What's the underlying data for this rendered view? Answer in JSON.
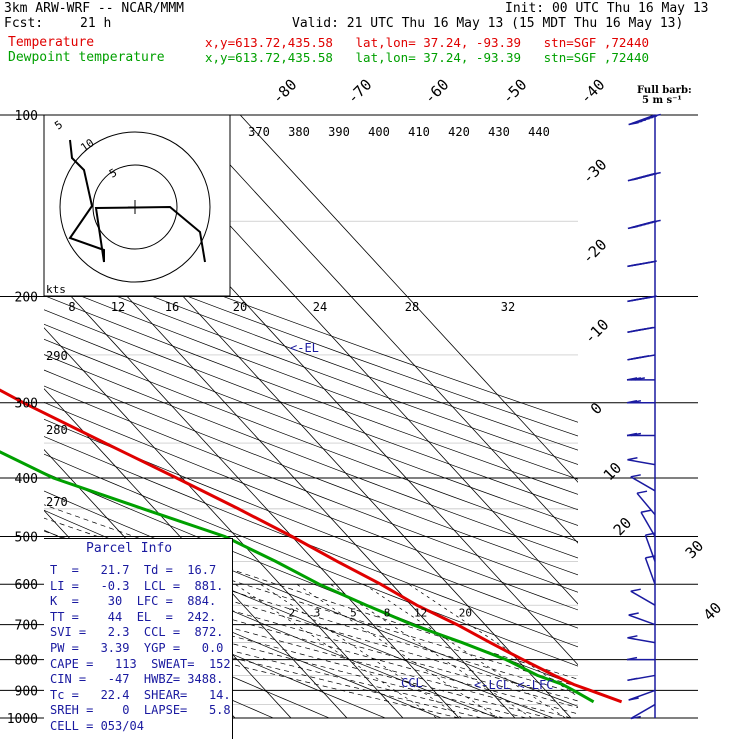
{
  "header": {
    "model": "3km ARW-WRF -- NCAR/MMM",
    "init": "Init: 00 UTC Thu 16 May 13",
    "fcst_label": "Fcst:",
    "fcst_value": "21 h",
    "valid": "Valid: 21 UTC Thu 16 May 13 (15 MDT Thu 16 May 13)",
    "temp_label": "Temperature",
    "dew_label": "Dewpoint temperature",
    "temp_info": "x,y=613.72,435.58   lat,lon= 37.24, -93.39   stn=SGF ,72440",
    "dew_info": "x,y=613.72,435.58   lat,lon= 37.24, -93.39   stn=SGF ,72440"
  },
  "barb_legend": {
    "line1": "Full barb:",
    "line2": "5 m s⁻¹"
  },
  "parcel_info": {
    "title": "Parcel Info",
    "rows": [
      "T  =   21.7  Td =  16.7",
      "LI =   -0.3  LCL =  881.",
      "K  =    30  LFC =  884.",
      "TT =    44  EL  =  242.",
      "SVI =   2.3  CCL =  872.",
      "PW =   3.39  YGP =   0.0",
      "CAPE =   113  SWEAT=  152",
      "CIN =   -47  HWBZ= 3488.",
      "Tc =   22.4  SHEAR=   14.",
      "SREH =    0  LAPSE=   5.8",
      "CELL = 053/04"
    ]
  },
  "chart_data": {
    "type": "line",
    "title": "Skew-T log-P sounding",
    "ylabel": "Pressure (hPa)",
    "xlabel": "Temperature (°C)",
    "pressure_ticks": [
      100,
      200,
      300,
      400,
      500,
      600,
      700,
      800,
      900,
      1000
    ],
    "isotherm_labels": [
      "-80",
      "-70",
      "-60",
      "-50",
      "-40",
      "-30",
      "-20",
      "-10",
      "0",
      "10",
      "20",
      "30",
      "40"
    ],
    "theta_labels": [
      "370",
      "380",
      "390",
      "400",
      "410",
      "420",
      "430",
      "440"
    ],
    "theta_left_labels": [
      "290",
      "280",
      "270"
    ],
    "mixing_ratio_labels": [
      "2",
      "3",
      "5",
      "8",
      "12",
      "20"
    ],
    "hodo_speed_labels": [
      "8",
      "12",
      "16",
      "20",
      "24",
      "28",
      "32"
    ],
    "hodo_ring_labels": [
      "5",
      "10",
      "5"
    ],
    "hodo_unit": "kts",
    "annotations": {
      "el": "<-EL",
      "lcl_lfc": "<-LCL <-LFC",
      "ccl": "CCL"
    },
    "series": [
      {
        "name": "Temperature",
        "color": "#e00000",
        "points": [
          [
            100,
            -58
          ],
          [
            130,
            -55
          ],
          [
            150,
            -60
          ],
          [
            170,
            -63
          ],
          [
            200,
            -57
          ],
          [
            215,
            -51
          ],
          [
            250,
            -44
          ],
          [
            300,
            -36
          ],
          [
            350,
            -28
          ],
          [
            400,
            -21
          ],
          [
            450,
            -15
          ],
          [
            500,
            -10
          ],
          [
            550,
            -6
          ],
          [
            600,
            -2
          ],
          [
            650,
            1
          ],
          [
            700,
            5
          ],
          [
            750,
            8
          ],
          [
            800,
            11
          ],
          [
            850,
            14
          ],
          [
            880,
            16
          ],
          [
            900,
            18
          ],
          [
            940,
            21.7
          ]
        ]
      },
      {
        "name": "Dewpoint temperature",
        "color": "#00a000",
        "points": [
          [
            100,
            -85
          ],
          [
            130,
            -84
          ],
          [
            150,
            -82
          ],
          [
            170,
            -86
          ],
          [
            200,
            -85
          ],
          [
            215,
            -82
          ],
          [
            250,
            -72
          ],
          [
            300,
            -58
          ],
          [
            350,
            -50
          ],
          [
            400,
            -43
          ],
          [
            450,
            -32
          ],
          [
            500,
            -22
          ],
          [
            550,
            -17
          ],
          [
            600,
            -13
          ],
          [
            650,
            -8
          ],
          [
            700,
            -3
          ],
          [
            750,
            3
          ],
          [
            800,
            8
          ],
          [
            850,
            11
          ],
          [
            880,
            14
          ],
          [
            900,
            15
          ],
          [
            940,
            16.7
          ]
        ]
      }
    ],
    "wind_barbs": [
      {
        "p": 100,
        "spd": 35,
        "dir": 250
      },
      {
        "p": 125,
        "spd": 35,
        "dir": 255
      },
      {
        "p": 150,
        "spd": 35,
        "dir": 255
      },
      {
        "p": 175,
        "spd": 30,
        "dir": 260
      },
      {
        "p": 200,
        "spd": 30,
        "dir": 260
      },
      {
        "p": 225,
        "spd": 25,
        "dir": 260
      },
      {
        "p": 250,
        "spd": 20,
        "dir": 260
      },
      {
        "p": 275,
        "spd": 15,
        "dir": 270
      },
      {
        "p": 300,
        "spd": 10,
        "dir": 270
      },
      {
        "p": 340,
        "spd": 10,
        "dir": 270
      },
      {
        "p": 380,
        "spd": 5,
        "dir": 280
      },
      {
        "p": 420,
        "spd": 5,
        "dir": 300
      },
      {
        "p": 460,
        "spd": 5,
        "dir": 320
      },
      {
        "p": 500,
        "spd": 5,
        "dir": 330
      },
      {
        "p": 550,
        "spd": 5,
        "dir": 340
      },
      {
        "p": 600,
        "spd": 5,
        "dir": 340
      },
      {
        "p": 650,
        "spd": 5,
        "dir": 300
      },
      {
        "p": 700,
        "spd": 5,
        "dir": 290
      },
      {
        "p": 750,
        "spd": 5,
        "dir": 280
      },
      {
        "p": 800,
        "spd": 5,
        "dir": 270
      },
      {
        "p": 850,
        "spd": 5,
        "dir": 260
      },
      {
        "p": 900,
        "spd": 5,
        "dir": 250
      },
      {
        "p": 950,
        "spd": 5,
        "dir": 240
      }
    ],
    "hodograph": [
      [
        0.0,
        0.0
      ],
      [
        -0.25,
        0.05
      ],
      [
        -0.25,
        -0.25
      ],
      [
        -0.35,
        -0.35
      ],
      [
        -0.1,
        -0.4
      ],
      [
        0.3,
        0.0
      ],
      [
        -0.3,
        0.05
      ],
      [
        -0.4,
        0.2
      ],
      [
        -0.6,
        0.5
      ],
      [
        -0.45,
        0.75
      ],
      [
        -0.6,
        0.85
      ]
    ]
  }
}
